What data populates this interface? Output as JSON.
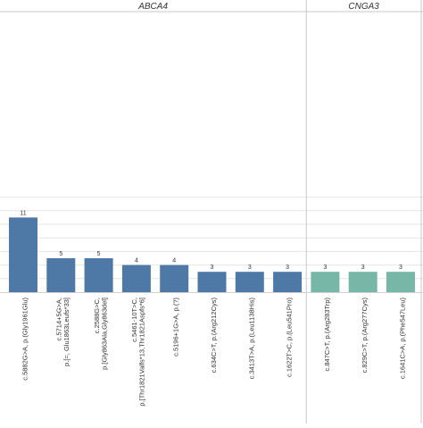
{
  "chart_data": {
    "type": "bar",
    "ylim": [
      0,
      15
    ],
    "grid": true,
    "panels": [
      {
        "title": "ABCA4",
        "color": "#4e79a7",
        "categories": [
          "c.5882G>A, p.(Gly1961Glu)",
          "c.5714+5G>A, p.[=, Glu1863Leufs*33]",
          "c.2588G>C, p.[Gly863Ala,Gly863del]",
          "c.5461-10T>C, p.[Thr1821Valfs*13,Thr1821Aspfs*6]",
          "c.5196+1G>A, p.(?)",
          "c.634C>T, p.(Arg212Cys)",
          "c.3413T>A, p.(Leu1138His)",
          "c.1622T>C, p.(Leu541Pro)"
        ],
        "values": [
          11,
          5,
          5,
          4,
          4,
          3,
          3,
          3
        ]
      },
      {
        "title": "CNGA3",
        "color": "#76b7a8",
        "categories": [
          "c.847C>T, p.(Arg283Trp)",
          "c.829C>T, p.(Arg277Cys)",
          "c.1641C>A, p.(Phe547Leu)"
        ],
        "values": [
          3,
          3,
          3
        ]
      }
    ]
  }
}
